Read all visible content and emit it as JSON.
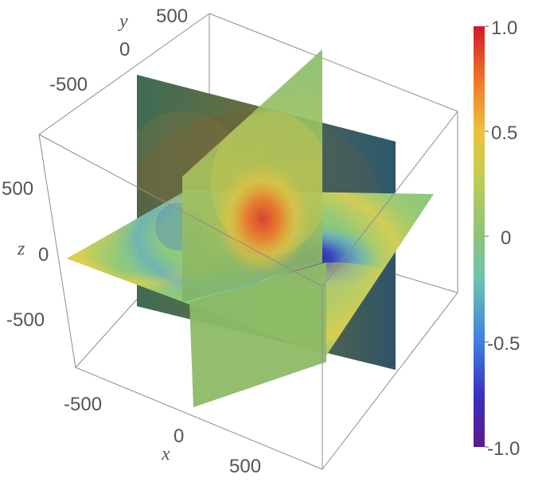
{
  "chart_data": {
    "type": "3d-slice-density",
    "title": "",
    "axes": {
      "x": {
        "label": "x",
        "ticks": [
          "-500",
          "0",
          "500"
        ],
        "range": [
          -800,
          800
        ]
      },
      "y": {
        "label": "y",
        "ticks": [
          "-500",
          "0",
          "500"
        ],
        "range": [
          -800,
          800
        ]
      },
      "z": {
        "label": "z",
        "ticks": [
          "500",
          "0",
          "-500"
        ],
        "range": [
          -800,
          800
        ]
      }
    },
    "slices": [
      {
        "plane": "z",
        "value": 0
      },
      {
        "plane": "x",
        "value": 0
      },
      {
        "plane": "y",
        "value": 0
      }
    ],
    "features": [
      {
        "kind": "maximum",
        "value": 1.0
      },
      {
        "kind": "minimum",
        "value": -1.0
      }
    ],
    "colorbar": {
      "range": [
        -1.0,
        1.0
      ],
      "ticks": [
        "1.0",
        "0.5",
        "0",
        "-0.5",
        "-1.0"
      ],
      "colormap": [
        "#5c1a8c",
        "#3a2fc0",
        "#3f7fe0",
        "#6cc4b0",
        "#8ec27a",
        "#d4cf4a",
        "#f0a02c",
        "#e04a1c",
        "#d4182a"
      ]
    },
    "box_edges": true,
    "grid": false
  }
}
